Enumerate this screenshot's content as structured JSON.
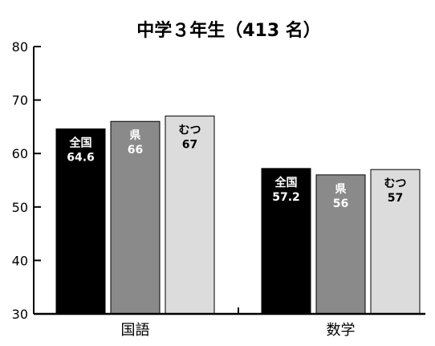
{
  "chart_data": {
    "type": "bar",
    "title": "中学３年生（413 名）",
    "categories": [
      "国語",
      "数学"
    ],
    "series": [
      {
        "name": "全国",
        "values": [
          64.6,
          57.2
        ],
        "color": "#000000",
        "label_color": "#ffffff",
        "value_labels": [
          "64.6",
          "57.2"
        ]
      },
      {
        "name": "県",
        "values": [
          66,
          56
        ],
        "color": "#8a8a8a",
        "label_color": "#ffffff",
        "value_labels": [
          "66",
          "56"
        ]
      },
      {
        "name": "むつ",
        "values": [
          67,
          57
        ],
        "color": "#dcdcdc",
        "label_color": "#000000",
        "value_labels": [
          "67",
          "57"
        ]
      }
    ],
    "ylim": [
      30,
      80
    ],
    "yticks": [
      30,
      40,
      50,
      60,
      70,
      80
    ],
    "ytick_labels": [
      "30",
      "40",
      "50",
      "60",
      "70",
      "80"
    ],
    "xlabel": "",
    "ylabel": "",
    "grid": false,
    "legend": "none"
  }
}
